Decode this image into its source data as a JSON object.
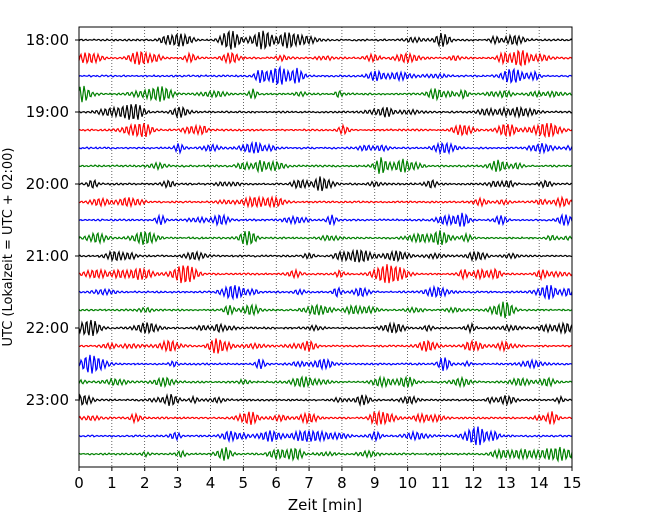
{
  "chart_data": {
    "type": "line",
    "title": "",
    "xlabel": "Zeit  [min]",
    "ylabel": "UTC (Lokalzeit = UTC + 02:00)",
    "xlim": [
      0,
      15
    ],
    "x_ticks": [
      "0",
      "1",
      "2",
      "3",
      "4",
      "5",
      "6",
      "7",
      "8",
      "9",
      "10",
      "11",
      "12",
      "13",
      "14",
      "15"
    ],
    "y_tick_labels": [
      "18:00",
      "19:00",
      "20:00",
      "21:00",
      "22:00",
      "23:00"
    ],
    "trace_interval_min": 15,
    "trace_colors": [
      "#000000",
      "#ff0000",
      "#0000ff",
      "#008000"
    ],
    "traces": [
      "18:00",
      "18:15",
      "18:30",
      "18:45",
      "19:00",
      "19:15",
      "19:30",
      "19:45",
      "20:00",
      "20:15",
      "20:30",
      "20:45",
      "21:00",
      "21:15",
      "21:30",
      "21:45",
      "22:00",
      "22:15",
      "22:30",
      "22:45",
      "23:00",
      "23:15",
      "23:30",
      "23:45"
    ],
    "grid": "vertical dotted"
  }
}
